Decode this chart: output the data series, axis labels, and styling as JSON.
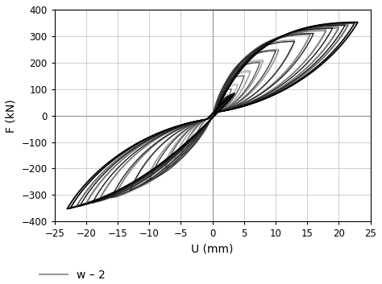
{
  "xlabel": "U (mm)",
  "ylabel": "F (kN)",
  "xlim": [
    -25,
    25
  ],
  "ylim": [
    -400,
    400
  ],
  "xticks": [
    -25,
    -20,
    -15,
    -10,
    -5,
    0,
    5,
    10,
    15,
    20,
    25
  ],
  "yticks": [
    -400,
    -300,
    -200,
    -100,
    0,
    100,
    200,
    300,
    400
  ],
  "legend_label": "w – 2",
  "legend_color": "#999999",
  "background_color": "#ffffff",
  "grid_color": "#bbbbbb",
  "loops": [
    [
      2.5,
      80,
      "#c0c0c0",
      0.7
    ],
    [
      2.5,
      75,
      "#b0b0b0",
      0.7
    ],
    [
      4.0,
      120,
      "#c0c0c0",
      0.7
    ],
    [
      4.0,
      115,
      "#b0b0b0",
      0.7
    ],
    [
      6.0,
      170,
      "#b0b0b0",
      0.8
    ],
    [
      6.0,
      165,
      "#a0a0a0",
      0.8
    ],
    [
      8.0,
      210,
      "#a8a8a8",
      0.8
    ],
    [
      8.0,
      205,
      "#989898",
      0.8
    ],
    [
      10.5,
      250,
      "#a0a0a0",
      0.8
    ],
    [
      10.5,
      245,
      "#909090",
      0.8
    ],
    [
      13.0,
      285,
      "#989898",
      0.85
    ],
    [
      13.0,
      280,
      "#888888",
      0.85
    ],
    [
      15.5,
      310,
      "#909090",
      0.85
    ],
    [
      15.5,
      305,
      "#808080",
      0.85
    ],
    [
      18.0,
      325,
      "#888888",
      0.9
    ],
    [
      18.0,
      320,
      "#787878",
      0.9
    ],
    [
      20.0,
      335,
      "#808080",
      0.9
    ],
    [
      20.0,
      330,
      "#707070",
      0.9
    ],
    [
      21.5,
      345,
      "#787878",
      0.9
    ],
    [
      21.5,
      340,
      "#686868",
      0.9
    ],
    [
      22.5,
      350,
      "#707070",
      0.9
    ],
    [
      22.5,
      348,
      "#606060",
      0.9
    ],
    [
      23.0,
      352,
      "#686868",
      0.9
    ],
    [
      23.0,
      350,
      "#585858",
      0.95
    ]
  ],
  "inner_loops": [
    [
      3.0,
      100,
      "#606060",
      0.9
    ],
    [
      5.0,
      150,
      "#505050",
      0.9
    ],
    [
      7.5,
      200,
      "#454545",
      0.9
    ],
    [
      10.0,
      245,
      "#3a3a3a",
      0.95
    ],
    [
      13.0,
      280,
      "#303030",
      0.95
    ],
    [
      16.0,
      310,
      "#252525",
      1.0
    ],
    [
      19.0,
      330,
      "#1a1a1a",
      1.0
    ],
    [
      21.0,
      342,
      "#111111",
      1.0
    ],
    [
      22.5,
      350,
      "#080808",
      1.0
    ],
    [
      23.0,
      353,
      "#000000",
      1.0
    ]
  ]
}
